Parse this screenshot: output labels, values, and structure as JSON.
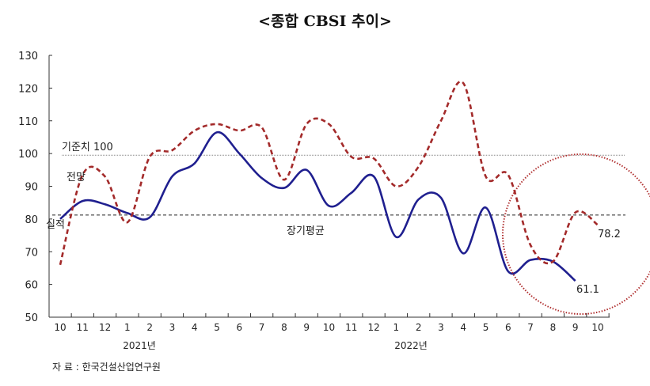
{
  "chart_data": {
    "type": "line",
    "title": "<종합 CBSI 추이>",
    "categories": [
      "10",
      "11",
      "12",
      "1",
      "2",
      "3",
      "4",
      "5",
      "6",
      "7",
      "8",
      "9",
      "10",
      "11",
      "12",
      "1",
      "2",
      "3",
      "4",
      "5",
      "6",
      "7",
      "8",
      "9",
      "10"
    ],
    "year_labels": [
      "2021년",
      "2022년"
    ],
    "ylim": [
      50,
      130
    ],
    "yticks": [
      50,
      60,
      70,
      80,
      90,
      100,
      110,
      120,
      130
    ],
    "series": [
      {
        "name": "실적",
        "color": "#1f1f8f",
        "style": "solid",
        "values": [
          80,
          85.5,
          84.5,
          81.8,
          80.5,
          93,
          97,
          106.5,
          100,
          92.5,
          89.5,
          95,
          84,
          88,
          93,
          74.5,
          86,
          86.5,
          69.5,
          83.5,
          64,
          67.5,
          67,
          61.1,
          null
        ]
      },
      {
        "name": "전망",
        "color": "#a32a2a",
        "style": "dashed",
        "values": [
          66,
          93.5,
          93,
          79,
          99,
          101,
          107,
          109,
          107,
          108,
          92,
          109,
          109,
          99,
          98.5,
          90,
          96,
          110,
          121.5,
          93,
          93.5,
          72,
          67,
          82,
          78.2
        ]
      }
    ],
    "reference_lines": [
      {
        "label": "기준치 100",
        "value": 99.5,
        "style": "dotted"
      },
      {
        "label": "장기평균",
        "value": 81.2,
        "style": "dashed"
      }
    ],
    "annotations": [
      "61.1",
      "78.2"
    ],
    "source": "자 료 : 한국건설산업연구원"
  }
}
